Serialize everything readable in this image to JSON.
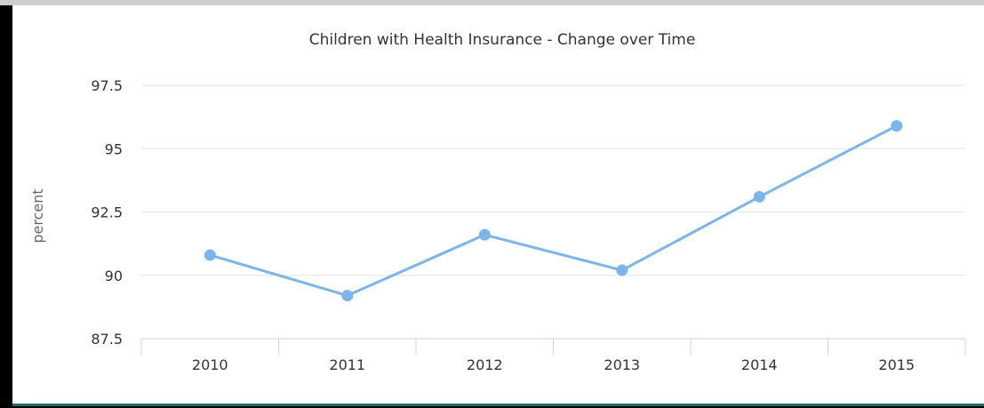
{
  "chart_data": {
    "type": "line",
    "title": "Children with Health Insurance - Change over Time",
    "xlabel": "",
    "ylabel": "percent",
    "categories": [
      "2010",
      "2011",
      "2012",
      "2013",
      "2014",
      "2015"
    ],
    "series": [
      {
        "name": "",
        "values": [
          90.8,
          89.2,
          91.6,
          90.2,
          93.1,
          95.9
        ]
      }
    ],
    "ylim": [
      87.5,
      97.5
    ],
    "yticks": [
      "87.5",
      "90",
      "92.5",
      "95",
      "97.5"
    ],
    "grid": true,
    "legend": "none",
    "colors": {
      "line": "#7cb5ec",
      "grid": "#e6e6e6",
      "axis": "#ccd6eb",
      "text": "#333333",
      "label": "#666666"
    }
  }
}
